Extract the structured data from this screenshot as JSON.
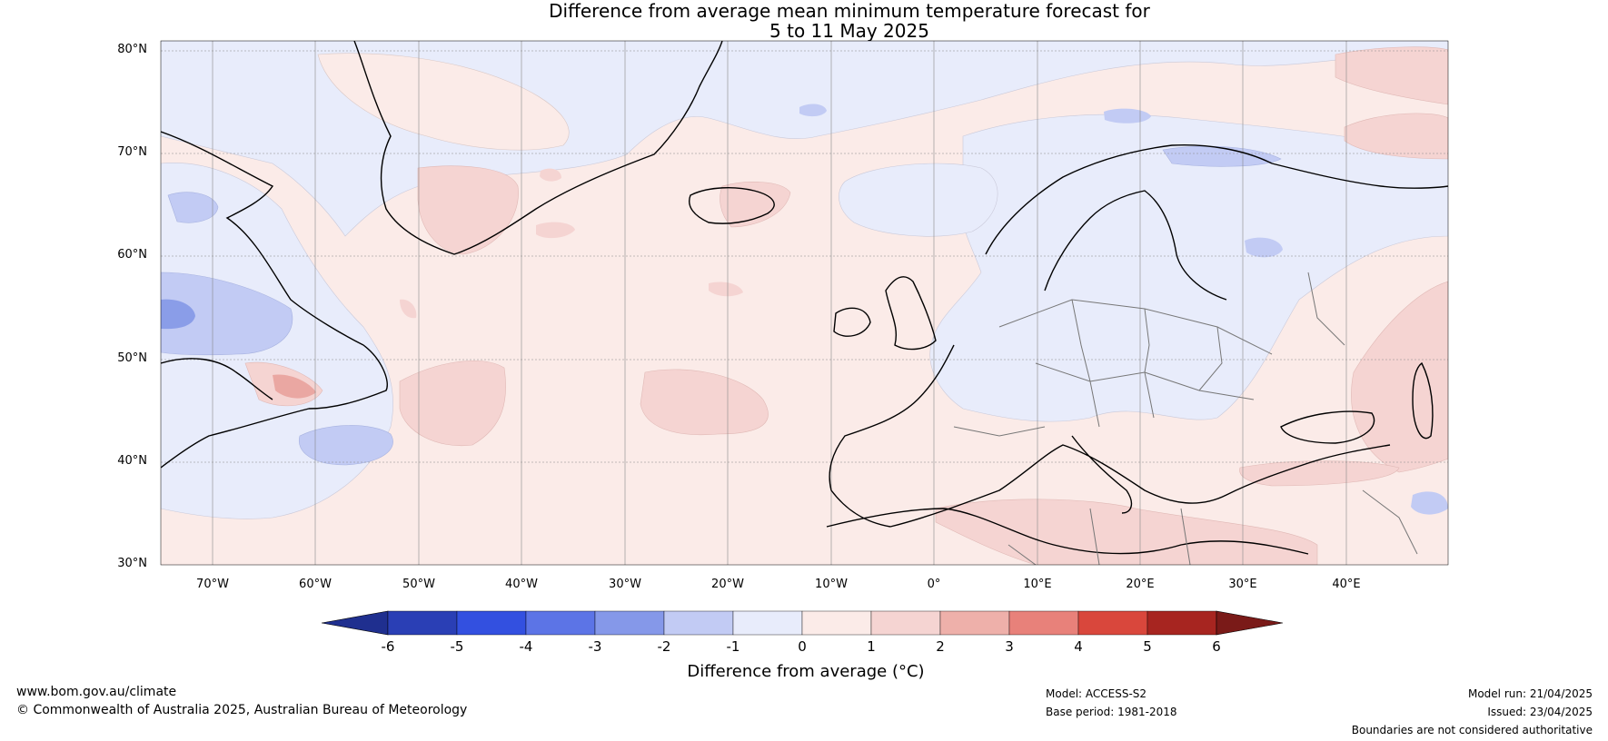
{
  "title": {
    "line1": "Difference from average mean minimum temperature forecast for",
    "line2": "5 to 11 May 2025"
  },
  "map": {
    "lat_ticks": [
      "80°N",
      "70°N",
      "60°N",
      "50°N",
      "40°N",
      "30°N"
    ],
    "lon_ticks": [
      "70°W",
      "60°W",
      "50°W",
      "40°W",
      "30°W",
      "20°W",
      "10°W",
      "0°",
      "10°E",
      "20°E",
      "30°E",
      "40°E"
    ],
    "colors": {
      "background_warm": "#fbebe8",
      "cool_light": "#e8ecfb",
      "cool_mid": "#c2cbf4",
      "cool_strong": "#8a9de8",
      "warm_mid": "#f5d4d2",
      "warm_strong": "#eaa7a2"
    }
  },
  "colorbar": {
    "title": "Difference from average (°C)",
    "labels": [
      "-6",
      "-5",
      "-4",
      "-3",
      "-2",
      "-1",
      "0",
      "1",
      "2",
      "3",
      "4",
      "5",
      "6"
    ],
    "colors": [
      "#1f2f8f",
      "#2a3fb5",
      "#3350e0",
      "#5c74e6",
      "#8598e9",
      "#c2cbf4",
      "#e8ecfb",
      "#fbebe8",
      "#f5d4d2",
      "#eeb0aa",
      "#e8817a",
      "#d9473c",
      "#a72520",
      "#7a1a18"
    ]
  },
  "footer": {
    "website": "www.bom.gov.au/climate",
    "copyright": "© Commonwealth of Australia 2025, Australian Bureau of Meteorology",
    "model": "Model: ACCESS-S2",
    "base_period": "Base period: 1981-2018",
    "model_run": "Model run: 21/04/2025",
    "issued": "Issued: 23/04/2025",
    "disclaimer": "Boundaries are not considered authoritative"
  }
}
